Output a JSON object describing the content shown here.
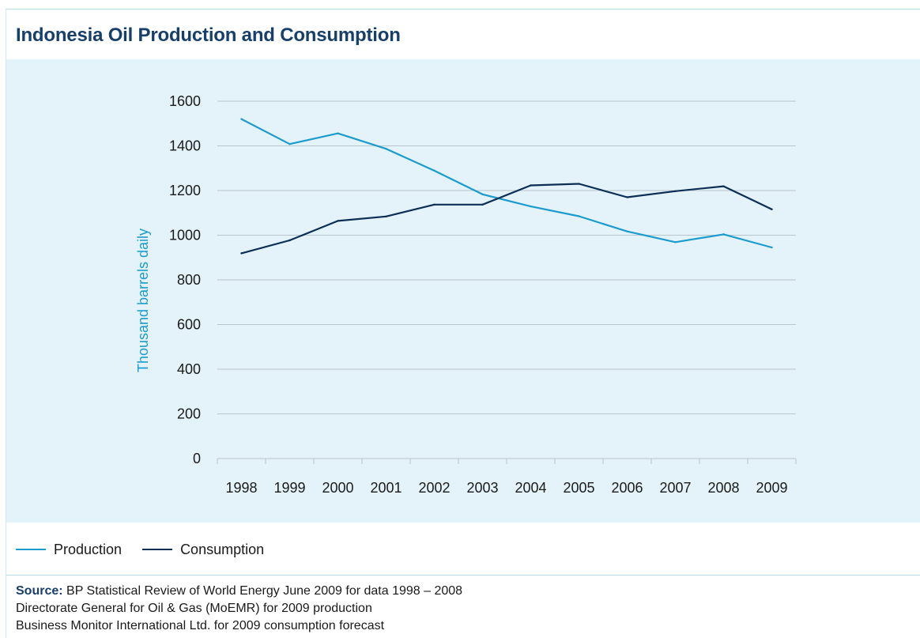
{
  "colors": {
    "production": "#1b9ccc",
    "consumption": "#0c2e55",
    "title": "#173f6b",
    "ylabel": "#1b9ccc",
    "grid": "#b7c6cc",
    "panel": "#e4f3f9"
  },
  "legend": {
    "production": "Production",
    "consumption": "Consumption"
  },
  "source": {
    "label": "Source:",
    "line1": " BP Statistical Review of World Energy June 2009 for data 1998 – 2008",
    "line2": "Directorate General for Oil & Gas (MoEMR) for 2009 production",
    "line3": "Business Monitor International Ltd. for 2009 consumption forecast"
  },
  "chart_data": {
    "type": "line",
    "title": "Indonesia Oil Production and Consumption",
    "xlabel": "",
    "ylabel": "Thousand barrels daily",
    "ylim": [
      0,
      1600
    ],
    "yticks": [
      0,
      200,
      400,
      600,
      800,
      1000,
      1200,
      1400,
      1600
    ],
    "categories": [
      "1998",
      "1999",
      "2000",
      "2001",
      "2002",
      "2003",
      "2004",
      "2005",
      "2006",
      "2007",
      "2008",
      "2009"
    ],
    "grid": true,
    "legend_position": "bottom-left",
    "series": [
      {
        "name": "Production",
        "values": [
          1520,
          1408,
          1456,
          1387,
          1289,
          1183,
          1129,
          1085,
          1017,
          969,
          1004,
          945
        ]
      },
      {
        "name": "Consumption",
        "values": [
          919,
          977,
          1064,
          1084,
          1137,
          1137,
          1223,
          1230,
          1170,
          1197,
          1219,
          1116
        ]
      }
    ]
  }
}
